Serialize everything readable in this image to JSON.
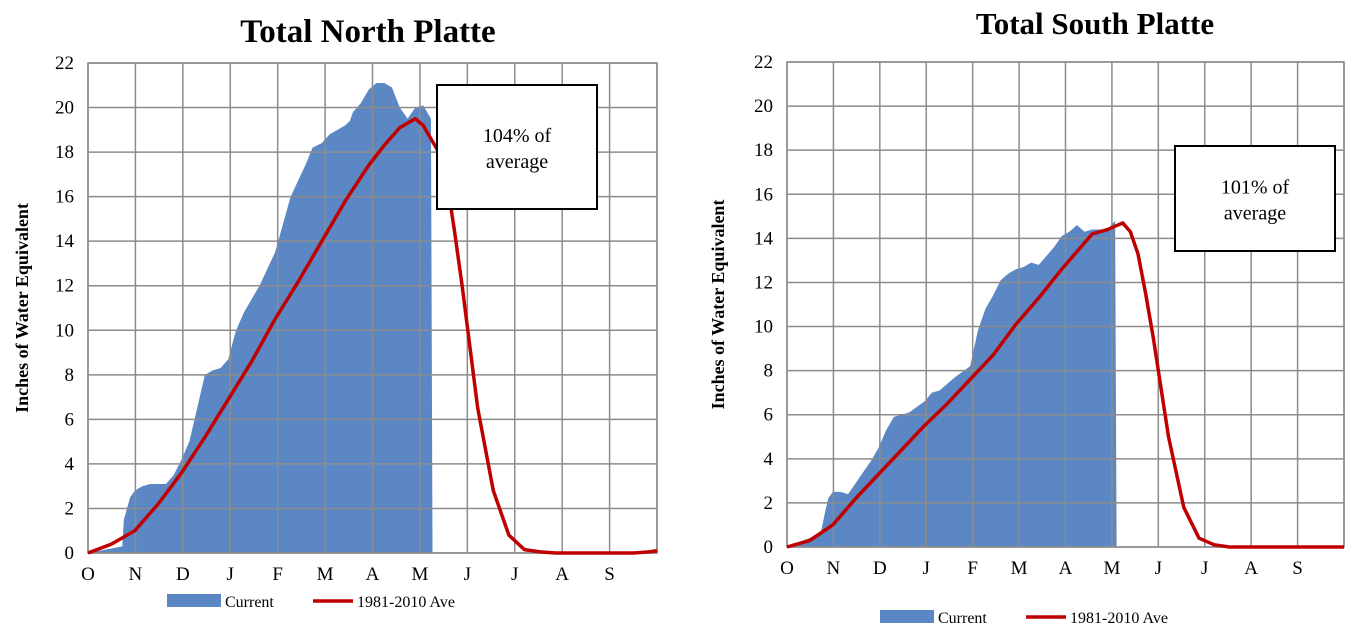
{
  "colors": {
    "current": "#5B87C4",
    "average": "#C00000",
    "grid": "#8C8C8C"
  },
  "legend": {
    "current_label": "Current",
    "average_label": "1981-2010 Ave"
  },
  "chart_data": [
    {
      "type": "area",
      "title": "Total North Platte",
      "xlabel": "",
      "ylabel": "Inches of Water Equivalent",
      "xlim": [
        0,
        365
      ],
      "ylim": [
        0,
        22
      ],
      "y_ticks": [
        0,
        2,
        4,
        6,
        8,
        10,
        12,
        14,
        16,
        18,
        20,
        22
      ],
      "x_tick_labels": [
        "O",
        "N",
        "D",
        "J",
        "F",
        "M",
        "A",
        "M",
        "J",
        "J",
        "A",
        "S"
      ],
      "annotation": [
        "104% of",
        "average"
      ],
      "grid": true,
      "legend_position": "bottom",
      "series": [
        {
          "name": "Current",
          "type": "area",
          "x": [
            0,
            22,
            23,
            25,
            27,
            30,
            35,
            40,
            45,
            50,
            55,
            60,
            65,
            70,
            75,
            80,
            85,
            90,
            93,
            95,
            100,
            110,
            120,
            130,
            140,
            144,
            147,
            150,
            155,
            160,
            165,
            168,
            170,
            175,
            180,
            185,
            190,
            195,
            200,
            205,
            210,
            215,
            220,
            221
          ],
          "y": [
            0,
            0.3,
            1.5,
            2.0,
            2.5,
            2.8,
            3.0,
            3.1,
            3.1,
            3.1,
            3.5,
            4.2,
            5.0,
            6.5,
            8.0,
            8.2,
            8.3,
            8.7,
            9.5,
            10.0,
            10.8,
            12.0,
            13.5,
            16.0,
            17.5,
            18.2,
            18.3,
            18.4,
            18.8,
            19.0,
            19.2,
            19.4,
            19.8,
            20.2,
            20.8,
            21.1,
            21.1,
            20.9,
            20.0,
            19.5,
            20.0,
            20.1,
            19.5,
            0
          ]
        },
        {
          "name": "1981-2010 Ave",
          "type": "line",
          "x": [
            0,
            15,
            30,
            45,
            60,
            75,
            90,
            105,
            120,
            135,
            150,
            165,
            180,
            190,
            195,
            200,
            210,
            215,
            220,
            225,
            230,
            235,
            240,
            250,
            260,
            270,
            280,
            290,
            300,
            310,
            320,
            330,
            340,
            350,
            360,
            365
          ],
          "y": [
            0,
            0.4,
            1.0,
            2.2,
            3.6,
            5.2,
            6.9,
            8.6,
            10.5,
            12.2,
            14.0,
            15.8,
            17.4,
            18.3,
            18.7,
            19.1,
            19.5,
            19.2,
            18.6,
            18.0,
            16.8,
            14.5,
            12.0,
            6.5,
            2.8,
            0.8,
            0.15,
            0.05,
            0,
            0,
            0,
            0,
            0,
            0,
            0.05,
            0.1
          ]
        }
      ]
    },
    {
      "type": "area",
      "title": "Total South Platte",
      "xlabel": "",
      "ylabel": "Inches of Water Equivalent",
      "xlim": [
        0,
        365
      ],
      "ylim": [
        0,
        22
      ],
      "y_ticks": [
        0,
        2,
        4,
        6,
        8,
        10,
        12,
        14,
        16,
        18,
        20,
        22
      ],
      "x_tick_labels": [
        "O",
        "N",
        "D",
        "J",
        "F",
        "M",
        "A",
        "M",
        "J",
        "J",
        "A",
        "S"
      ],
      "annotation": [
        "101% of",
        "average"
      ],
      "grid": true,
      "legend_position": "bottom",
      "series": [
        {
          "name": "Current",
          "type": "area",
          "x": [
            0,
            22,
            25,
            27,
            30,
            35,
            40,
            45,
            50,
            55,
            60,
            65,
            70,
            75,
            80,
            90,
            95,
            100,
            110,
            120,
            125,
            130,
            135,
            140,
            145,
            150,
            155,
            160,
            165,
            170,
            175,
            180,
            185,
            190,
            195,
            200,
            205,
            210,
            215,
            216
          ],
          "y": [
            0,
            0.6,
            1.6,
            2.2,
            2.5,
            2.5,
            2.4,
            2.9,
            3.4,
            3.9,
            4.5,
            5.3,
            5.9,
            6.0,
            6.1,
            6.6,
            7.0,
            7.1,
            7.7,
            8.2,
            9.8,
            10.8,
            11.4,
            12.1,
            12.4,
            12.6,
            12.7,
            12.9,
            12.8,
            13.2,
            13.6,
            14.1,
            14.3,
            14.6,
            14.3,
            14.4,
            14.4,
            14.4,
            14.8,
            0
          ]
        },
        {
          "name": "1981-2010 Ave",
          "type": "line",
          "x": [
            0,
            15,
            30,
            45,
            60,
            75,
            90,
            105,
            120,
            135,
            150,
            165,
            180,
            190,
            200,
            210,
            220,
            225,
            230,
            235,
            240,
            250,
            260,
            270,
            280,
            290,
            300,
            310,
            320,
            330,
            340,
            350,
            360,
            365
          ],
          "y": [
            0,
            0.3,
            1.0,
            2.2,
            3.3,
            4.4,
            5.5,
            6.5,
            7.6,
            8.7,
            10.1,
            11.3,
            12.6,
            13.4,
            14.2,
            14.4,
            14.7,
            14.3,
            13.3,
            11.5,
            9.5,
            5.0,
            1.8,
            0.4,
            0.1,
            0,
            0,
            0,
            0,
            0,
            0,
            0,
            0,
            0
          ]
        }
      ]
    }
  ]
}
